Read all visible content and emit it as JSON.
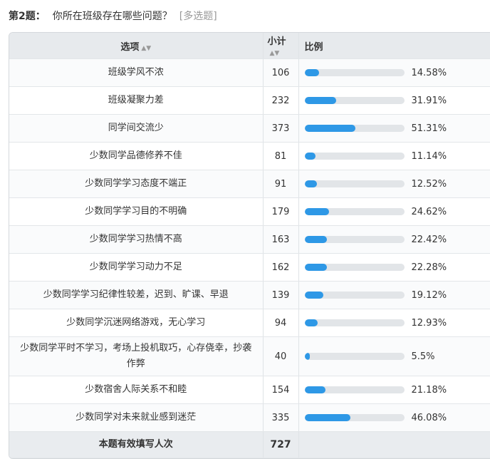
{
  "question": {
    "number": "第2题：",
    "text": "你所在班级存在哪些问题？",
    "type": "[多选题]"
  },
  "columns": {
    "option": "选项",
    "count": "小计",
    "ratio": "比例"
  },
  "rows": [
    {
      "option": "班级学风不浓",
      "count": "106",
      "pct": "14.58%",
      "fraction": 0.1458
    },
    {
      "option": "班级凝聚力差",
      "count": "232",
      "pct": "31.91%",
      "fraction": 0.3191
    },
    {
      "option": "同学间交流少",
      "count": "373",
      "pct": "51.31%",
      "fraction": 0.5131
    },
    {
      "option": "少数同学品德修养不佳",
      "count": "81",
      "pct": "11.14%",
      "fraction": 0.1114
    },
    {
      "option": "少数同学学习态度不端正",
      "count": "91",
      "pct": "12.52%",
      "fraction": 0.1252
    },
    {
      "option": "少数同学学习目的不明确",
      "count": "179",
      "pct": "24.62%",
      "fraction": 0.2462
    },
    {
      "option": "少数同学学习热情不高",
      "count": "163",
      "pct": "22.42%",
      "fraction": 0.2242
    },
    {
      "option": "少数同学学习动力不足",
      "count": "162",
      "pct": "22.28%",
      "fraction": 0.2228
    },
    {
      "option": "少数同学学习纪律性较差，迟到、旷课、早退",
      "count": "139",
      "pct": "19.12%",
      "fraction": 0.1912
    },
    {
      "option": "少数同学沉迷网络游戏，无心学习",
      "count": "94",
      "pct": "12.93%",
      "fraction": 0.1293
    },
    {
      "option": "少数同学平时不学习，考场上投机取巧，心存侥幸，抄袭作弊",
      "count": "40",
      "pct": "5.5%",
      "fraction": 0.055
    },
    {
      "option": "少数宿舍人际关系不和睦",
      "count": "154",
      "pct": "21.18%",
      "fraction": 0.2118
    },
    {
      "option": "少数同学对未来就业感到迷茫",
      "count": "335",
      "pct": "46.08%",
      "fraction": 0.4608
    }
  ],
  "footer": {
    "label": "本题有效填写人次",
    "total": "727"
  },
  "colors": {
    "bar_fill": "#2e98e6",
    "bar_track": "#e2e5e8"
  }
}
